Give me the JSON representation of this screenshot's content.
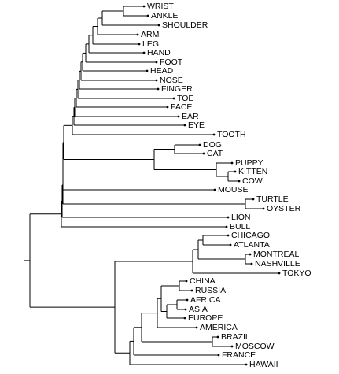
{
  "leaves": [
    "WRIST",
    "ANKLE",
    "SHOULDER",
    "ARM",
    "LEG",
    "HAND",
    "FOOT",
    "HEAD",
    "NOSE",
    "FINGER",
    "TOE",
    "FACE",
    "EAR",
    "EYE",
    "TOOTH",
    "DOG",
    "CAT",
    "PUPPY",
    "KITTEN",
    "COW",
    "MOUSE",
    "TURTLE",
    "OYSTER",
    "LION",
    "BULL",
    "CHICAGO",
    "ATLANTA",
    "MONTREAL",
    "NASHVILLE",
    "TOKYO",
    "CHINA",
    "RUSSIA",
    "AFRICA",
    "ASIA",
    "EUROPE",
    "AMERICA",
    "BRAZIL",
    "MOSCOW",
    "FRANCE",
    "HAWAII"
  ]
}
